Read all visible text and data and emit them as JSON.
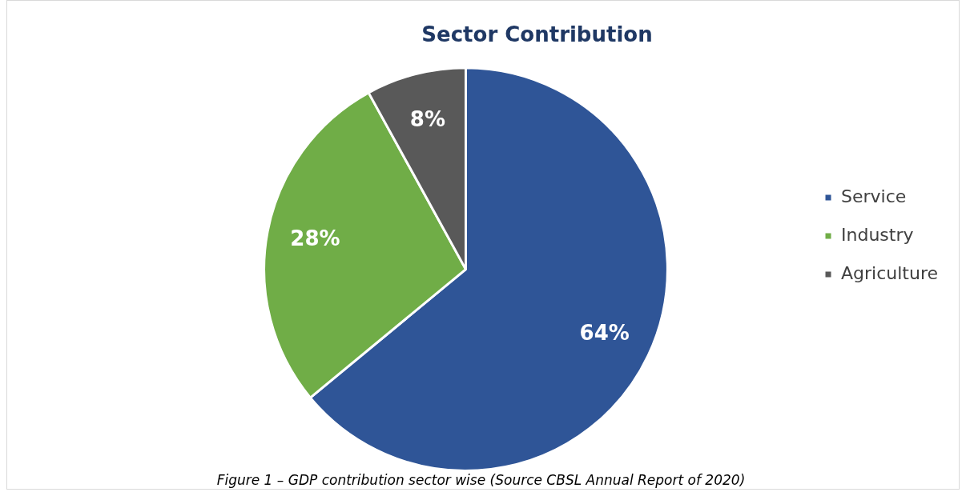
{
  "chart_data": {
    "type": "pie",
    "title": "Sector Contribution",
    "categories": [
      "Service",
      "Industry",
      "Agriculture"
    ],
    "values": [
      64,
      28,
      8
    ],
    "colors": [
      "#2f5597",
      "#70ad47",
      "#595959"
    ],
    "value_labels": [
      "64%",
      "28%",
      "8%"
    ],
    "legend": "right",
    "annotations": [
      "Figure 1 – GDP contribution sector wise (Source CBSL Annual Report of 2020)"
    ]
  }
}
